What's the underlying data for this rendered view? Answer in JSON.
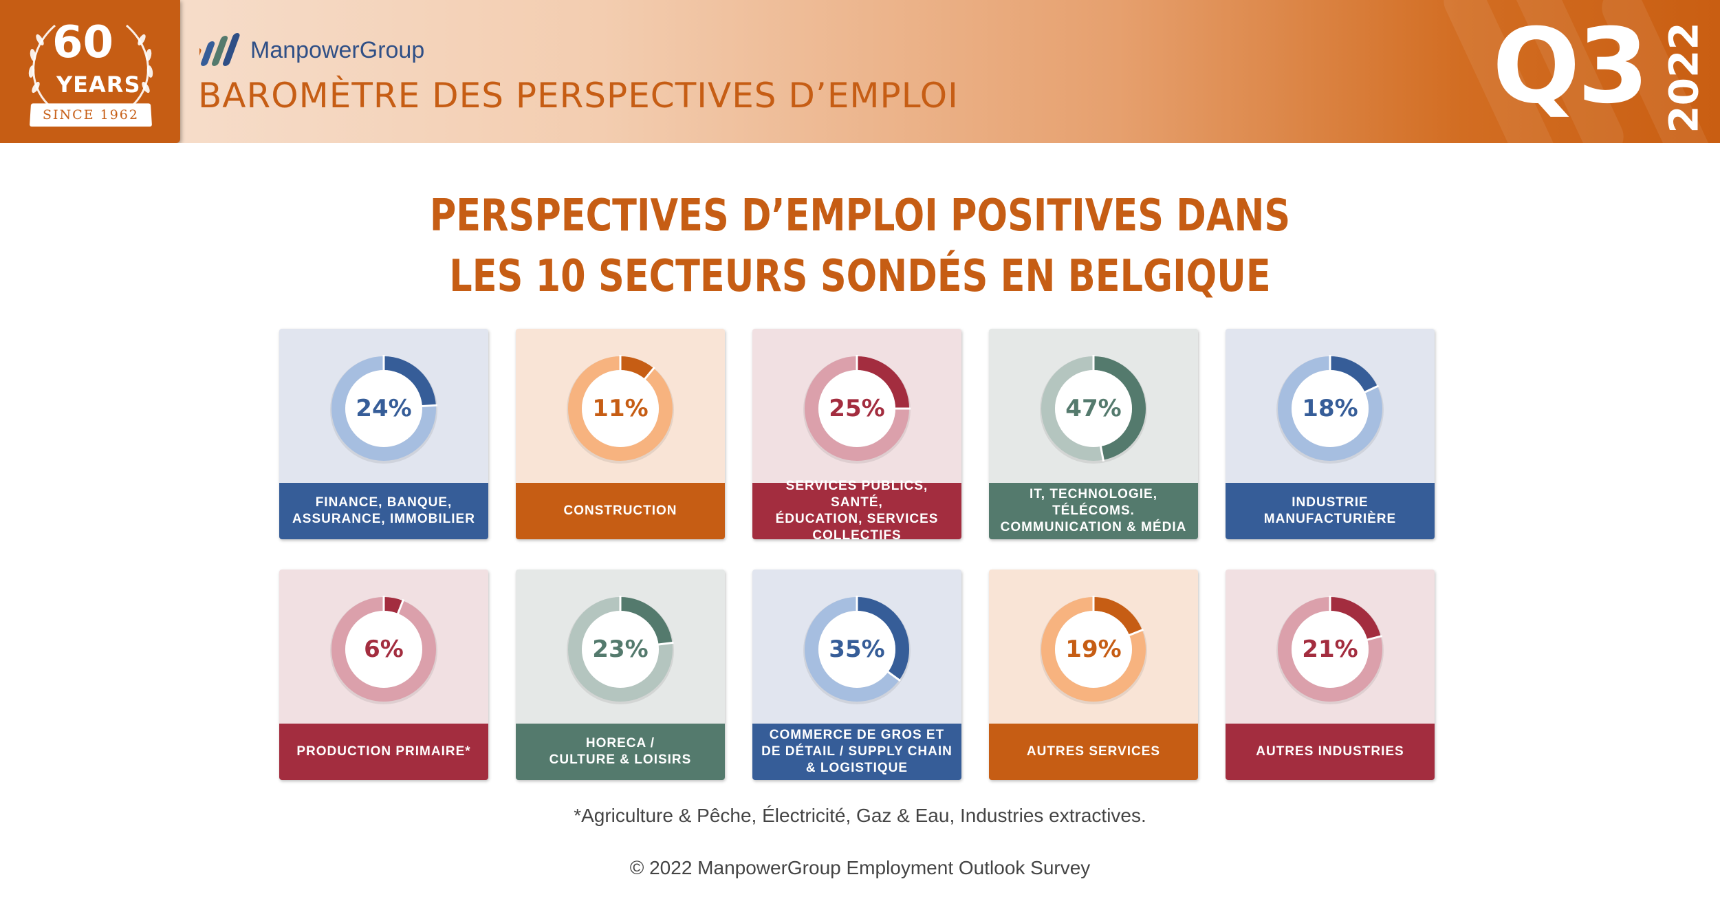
{
  "header": {
    "badge_number": "60",
    "badge_years": "YEARS",
    "badge_since": "SINCE 1962",
    "brand": "ManpowerGroup",
    "title": "BAROMÈTRE DES PERSPECTIVES D’EMPLOI",
    "quarter": "Q3",
    "year": "2022",
    "accent_color": "#c65d14"
  },
  "main": {
    "title_line1": "PERSPECTIVES D’EMPLOI POSITIVES DANS",
    "title_line2": "LES 10 SECTEURS SONDÉS EN BELGIQUE"
  },
  "chart_data": {
    "type": "donut",
    "unit": "%",
    "categories": [
      "FINANCE, BANQUE, ASSURANCE, IMMOBILIER",
      "CONSTRUCTION",
      "SERVICES PUBLICS, SANTÉ, ÉDUCATION, SERVICES COLLECTIFS",
      "IT, TECHNOLOGIE, TÉLÉCOMS. COMMUNICATION & MÉDIA",
      "INDUSTRIE MANUFACTURIÈRE",
      "PRODUCTION PRIMAIRE*",
      "HORECA / CULTURE & LOISIRS",
      "COMMERCE DE GROS ET DE DÉTAIL / SUPPLY CHAIN & LOGISTIQUE",
      "AUTRES SERVICES",
      "AUTRES INDUSTRIES"
    ],
    "values": [
      24,
      11,
      25,
      47,
      18,
      6,
      23,
      35,
      19,
      21
    ],
    "labels": [
      "24%",
      "11%",
      "25%",
      "47%",
      "18%",
      "6%",
      "23%",
      "35%",
      "19%",
      "21%"
    ]
  },
  "tiles": [
    {
      "label": "FINANCE, BANQUE,\nASSURANCE, IMMOBILIER",
      "pct": "24%",
      "value": 24,
      "bg": "#e1e5ef",
      "light": "#a6bee0",
      "dark": "#365d98",
      "band": "#365d98",
      "text": "#365d98"
    },
    {
      "label": "CONSTRUCTION",
      "pct": "11%",
      "value": 11,
      "bg": "#f9e4d6",
      "light": "#f7b37f",
      "dark": "#c65d14",
      "band": "#c65d14",
      "text": "#c65d14"
    },
    {
      "label": "SERVICES PUBLICS, SANTÉ,\nÉDUCATION, SERVICES\nCOLLECTIFS",
      "pct": "25%",
      "value": 25,
      "bg": "#f1e0e2",
      "light": "#dba0ab",
      "dark": "#a32d3f",
      "band": "#a32d3f",
      "text": "#a32d3f"
    },
    {
      "label": "IT, TECHNOLOGIE,\nTÉLÉCOMS.\nCOMMUNICATION & MÉDIA",
      "pct": "47%",
      "value": 47,
      "bg": "#e5e8e7",
      "light": "#b4c5bf",
      "dark": "#547a6d",
      "band": "#547a6d",
      "text": "#547a6d"
    },
    {
      "label": "INDUSTRIE\nMANUFACTURIÈRE",
      "pct": "18%",
      "value": 18,
      "bg": "#e1e5ef",
      "light": "#a6bee0",
      "dark": "#365d98",
      "band": "#365d98",
      "text": "#365d98"
    },
    {
      "label": "PRODUCTION PRIMAIRE*",
      "pct": "6%",
      "value": 6,
      "bg": "#f1e0e2",
      "light": "#dba0ab",
      "dark": "#a32d3f",
      "band": "#a32d3f",
      "text": "#a32d3f"
    },
    {
      "label": "HORECA /\nCULTURE & LOISIRS",
      "pct": "23%",
      "value": 23,
      "bg": "#e5e8e7",
      "light": "#b4c5bf",
      "dark": "#547a6d",
      "band": "#547a6d",
      "text": "#547a6d"
    },
    {
      "label": "COMMERCE DE GROS ET\nDE DÉTAIL / SUPPLY CHAIN\n& LOGISTIQUE",
      "pct": "35%",
      "value": 35,
      "bg": "#e1e5ef",
      "light": "#a6bee0",
      "dark": "#365d98",
      "band": "#365d98",
      "text": "#365d98"
    },
    {
      "label": "AUTRES SERVICES",
      "pct": "19%",
      "value": 19,
      "bg": "#f9e4d6",
      "light": "#f7b37f",
      "dark": "#c65d14",
      "band": "#c65d14",
      "text": "#c65d14"
    },
    {
      "label": "AUTRES INDUSTRIES",
      "pct": "21%",
      "value": 21,
      "bg": "#f1e0e2",
      "light": "#dba0ab",
      "dark": "#a32d3f",
      "band": "#a32d3f",
      "text": "#a32d3f"
    }
  ],
  "footer": {
    "footnote": "*Agriculture & Pêche, Électricité, Gaz & Eau, Industries extractives.",
    "copyright": "© 2022 ManpowerGroup Employment Outlook Survey"
  }
}
